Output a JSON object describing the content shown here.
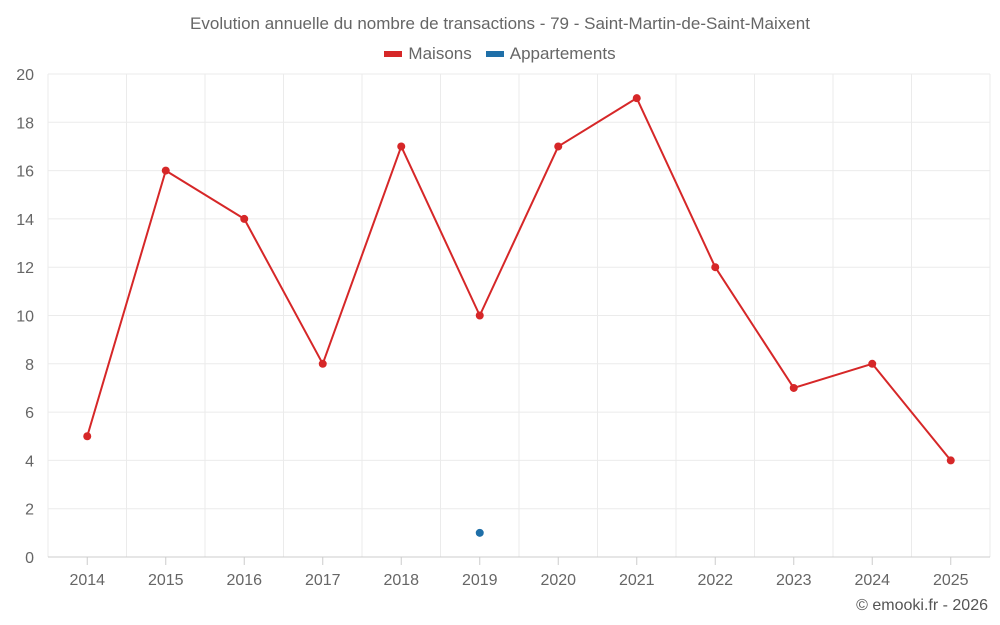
{
  "chart_data": {
    "type": "line",
    "title": "Evolution annuelle du nombre de transactions - 79 - Saint-Martin-de-Saint-Maixent",
    "categories": [
      "2014",
      "2015",
      "2016",
      "2017",
      "2018",
      "2019",
      "2020",
      "2021",
      "2022",
      "2023",
      "2024",
      "2025"
    ],
    "series": [
      {
        "name": "Maisons",
        "color": "#d62728",
        "values": [
          5,
          16,
          14,
          8,
          17,
          10,
          17,
          19,
          12,
          7,
          8,
          4
        ]
      },
      {
        "name": "Appartements",
        "color": "#1f6fa8",
        "values": [
          null,
          null,
          null,
          null,
          null,
          1,
          null,
          null,
          null,
          null,
          null,
          null
        ]
      }
    ],
    "yticks": [
      0,
      2,
      4,
      6,
      8,
      10,
      12,
      14,
      16,
      18,
      20
    ],
    "ylim": [
      0,
      20
    ],
    "xlabel": "",
    "ylabel": "",
    "grid": true,
    "legend_position": "top-center"
  },
  "footer": {
    "credit": "© emooki.fr - 2026"
  }
}
